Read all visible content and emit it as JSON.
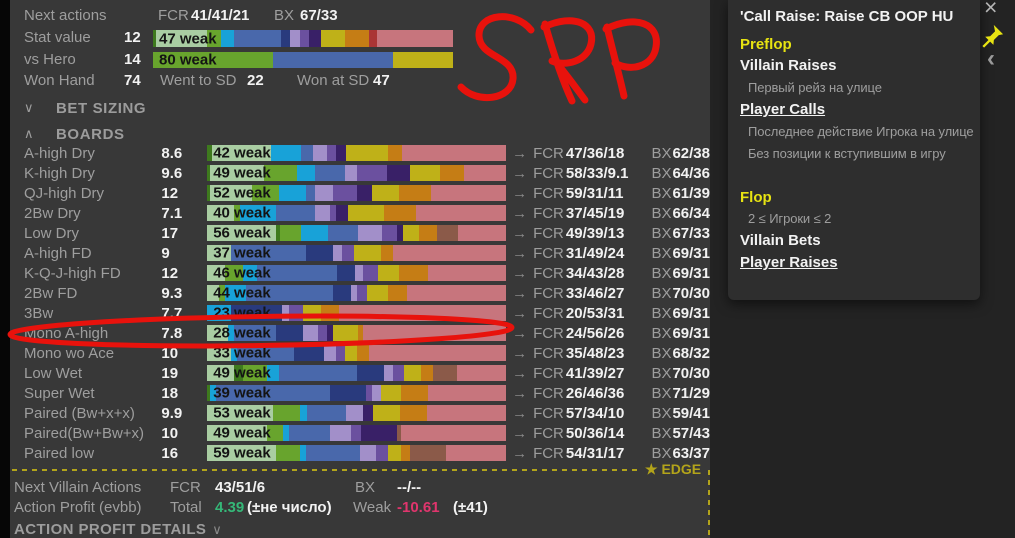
{
  "palette": {
    "dgreen": "#3e7a1e",
    "lgreen": "#a9cda2",
    "green": "#68a42d",
    "cyan": "#18a2d8",
    "blue": "#4968ab",
    "navy": "#293a7d",
    "lpurple": "#a28fc9",
    "purple": "#6b509f",
    "dpurple": "#392067",
    "yellow": "#bfb118",
    "orange": "#c57d15",
    "brown": "#8b5a49",
    "red": "#aa3535",
    "rose": "#c7757d"
  },
  "icons": {
    "arrow": "→",
    "chevron_down": "∨",
    "chevron_up": "∧",
    "close": "×",
    "chevron_left": "‹",
    "star": "★"
  },
  "top_stats": {
    "next_actions_label": "Next actions",
    "fcr_label": "FCR",
    "fcr_value": "41/41/21",
    "bx_label": "BX",
    "bx_value": "67/33",
    "stat_value_label": "Stat value",
    "stat_value": "12",
    "vs_hero_label": "vs Hero",
    "vs_hero_value": "14",
    "won_hand_label": "Won Hand",
    "won_hand_value": "74",
    "went_to_sd_label": "Went to SD",
    "went_to_sd_value": "22",
    "won_at_sd_label": "Won at SD",
    "won_at_sd_value": "47",
    "stat_bar": {
      "weak_label": "47 weak",
      "segments": [
        [
          "dgreen",
          1
        ],
        [
          "lgreen",
          17
        ],
        [
          "green",
          4.5
        ],
        [
          "cyan",
          4.5
        ],
        [
          "blue",
          15.5
        ],
        [
          "navy",
          3
        ],
        [
          "lpurple",
          3.5
        ],
        [
          "purple",
          3
        ],
        [
          "dpurple",
          4
        ],
        [
          "yellow",
          8
        ],
        [
          "orange",
          8
        ],
        [
          "red",
          2.5
        ],
        [
          "rose",
          25.5
        ]
      ]
    },
    "hero_bar": {
      "weak_label": "80 weak",
      "segments": [
        [
          "green",
          40
        ],
        [
          "blue",
          40
        ],
        [
          "yellow",
          20
        ]
      ]
    }
  },
  "sections": {
    "bet_sizing": "BET SIZING",
    "boards": "BOARDS"
  },
  "boards_meta": {
    "arrow": "→",
    "fcr_label": "FCR",
    "bx_label": "BX"
  },
  "boards": [
    {
      "label": "A-high Dry",
      "value": "8.6",
      "weak": "42 weak",
      "fcr": "47/36/18",
      "bx": "62/38",
      "segments": [
        [
          "dgreen",
          1.5
        ],
        [
          "lgreen",
          20
        ],
        [
          "cyan",
          10
        ],
        [
          "blue",
          4
        ],
        [
          "lpurple",
          4.5
        ],
        [
          "purple",
          3
        ],
        [
          "dpurple",
          3.5
        ],
        [
          "yellow",
          14
        ],
        [
          "orange",
          4.5
        ],
        [
          "rose",
          35
        ]
      ]
    },
    {
      "label": "K-high Dry",
      "value": "9.6",
      "weak": "49 weak",
      "fcr": "58/33/9.1",
      "bx": "64/36",
      "segments": [
        [
          "dgreen",
          1
        ],
        [
          "lgreen",
          18
        ],
        [
          "green",
          11
        ],
        [
          "cyan",
          6
        ],
        [
          "blue",
          10
        ],
        [
          "lpurple",
          4
        ],
        [
          "purple",
          10
        ],
        [
          "dpurple",
          8
        ],
        [
          "yellow",
          10
        ],
        [
          "orange",
          8
        ],
        [
          "rose",
          14
        ]
      ]
    },
    {
      "label": "QJ-high Dry",
      "value": "12",
      "weak": "52 weak",
      "fcr": "59/31/11",
      "bx": "61/39",
      "segments": [
        [
          "dgreen",
          1
        ],
        [
          "lgreen",
          14
        ],
        [
          "green",
          9
        ],
        [
          "cyan",
          9
        ],
        [
          "blue",
          3
        ],
        [
          "lpurple",
          6
        ],
        [
          "purple",
          8
        ],
        [
          "dpurple",
          5
        ],
        [
          "yellow",
          9
        ],
        [
          "orange",
          11
        ],
        [
          "rose",
          25
        ]
      ]
    },
    {
      "label": "2Bw Dry",
      "value": "7.1",
      "weak": "40 weak",
      "fcr": "37/45/19",
      "bx": "66/34",
      "segments": [
        [
          "lgreen",
          9
        ],
        [
          "green",
          2
        ],
        [
          "cyan",
          12
        ],
        [
          "blue",
          13
        ],
        [
          "lpurple",
          5
        ],
        [
          "purple",
          2
        ],
        [
          "dpurple",
          4
        ],
        [
          "yellow",
          12
        ],
        [
          "orange",
          11
        ],
        [
          "rose",
          30
        ]
      ]
    },
    {
      "label": "Low Dry",
      "value": "17",
      "weak": "56 weak",
      "fcr": "49/39/13",
      "bx": "67/33",
      "segments": [
        [
          "lgreen",
          23
        ],
        [
          "dgreen",
          1.5
        ],
        [
          "green",
          7
        ],
        [
          "cyan",
          9
        ],
        [
          "blue",
          10
        ],
        [
          "lpurple",
          8
        ],
        [
          "purple",
          5
        ],
        [
          "dpurple",
          2
        ],
        [
          "yellow",
          5.5
        ],
        [
          "orange",
          6
        ],
        [
          "brown",
          7
        ],
        [
          "rose",
          16
        ]
      ]
    },
    {
      "label": "A-high FD",
      "value": "9",
      "weak": "37 weak",
      "fcr": "31/49/24",
      "bx": "69/31",
      "segments": [
        [
          "lgreen",
          8
        ],
        [
          "blue",
          25
        ],
        [
          "navy",
          9
        ],
        [
          "lpurple",
          3
        ],
        [
          "purple",
          4
        ],
        [
          "yellow",
          9
        ],
        [
          "orange",
          4
        ],
        [
          "rose",
          38
        ]
      ]
    },
    {
      "label": "K-Q-J-high FD",
      "value": "12",
      "weak": "46 weak",
      "fcr": "34/43/28",
      "bx": "69/31",
      "segments": [
        [
          "lgreen",
          6
        ],
        [
          "green",
          6
        ],
        [
          "cyan",
          4.5
        ],
        [
          "blue",
          27
        ],
        [
          "navy",
          6
        ],
        [
          "lpurple",
          2.5
        ],
        [
          "purple",
          5
        ],
        [
          "yellow",
          7
        ],
        [
          "orange",
          10
        ],
        [
          "rose",
          26
        ]
      ]
    },
    {
      "label": "2Bw FD",
      "value": "9.3",
      "weak": "44 weak",
      "fcr": "33/46/27",
      "bx": "70/30",
      "segments": [
        [
          "lgreen",
          4
        ],
        [
          "green",
          2
        ],
        [
          "cyan",
          7
        ],
        [
          "blue",
          29
        ],
        [
          "navy",
          6
        ],
        [
          "lpurple",
          2
        ],
        [
          "purple",
          3.5
        ],
        [
          "yellow",
          7
        ],
        [
          "orange",
          6.5
        ],
        [
          "rose",
          33
        ]
      ]
    },
    {
      "label": "3Bw",
      "value": "7.7",
      "weak": "23 weak",
      "fcr": "20/53/31",
      "bx": "69/31",
      "segments": [
        [
          "cyan",
          8
        ],
        [
          "navy",
          17
        ],
        [
          "lpurple",
          2.5
        ],
        [
          "purple",
          4.5
        ],
        [
          "yellow",
          6
        ],
        [
          "orange",
          6
        ],
        [
          "rose",
          56
        ]
      ]
    },
    {
      "label": "Mono A-high",
      "value": "7.8",
      "weak": "28 weak",
      "fcr": "24/56/26",
      "bx": "69/31",
      "segments": [
        [
          "lgreen",
          7
        ],
        [
          "cyan",
          2
        ],
        [
          "blue",
          14
        ],
        [
          "navy",
          9
        ],
        [
          "lpurple",
          5
        ],
        [
          "purple",
          3
        ],
        [
          "dpurple",
          2
        ],
        [
          "yellow",
          8.5
        ],
        [
          "orange",
          1.5
        ],
        [
          "rose",
          48
        ]
      ]
    },
    {
      "label": "Mono wo Ace",
      "value": "10",
      "weak": "33 weak",
      "fcr": "35/48/23",
      "bx": "68/32",
      "segments": [
        [
          "lgreen",
          8
        ],
        [
          "cyan",
          2
        ],
        [
          "blue",
          19
        ],
        [
          "navy",
          10
        ],
        [
          "lpurple",
          4
        ],
        [
          "purple",
          3
        ],
        [
          "yellow",
          4
        ],
        [
          "orange",
          4
        ],
        [
          "rose",
          46
        ]
      ]
    },
    {
      "label": "Low Wet",
      "value": "19",
      "weak": "49 weak",
      "fcr": "41/39/27",
      "bx": "70/30",
      "segments": [
        [
          "lgreen",
          9
        ],
        [
          "dgreen",
          3
        ],
        [
          "green",
          8
        ],
        [
          "cyan",
          4
        ],
        [
          "blue",
          26
        ],
        [
          "navy",
          9
        ],
        [
          "lpurple",
          3
        ],
        [
          "purple",
          4
        ],
        [
          "yellow",
          5.5
        ],
        [
          "orange",
          4
        ],
        [
          "brown",
          8
        ],
        [
          "rose",
          16.5
        ]
      ]
    },
    {
      "label": "Super Wet",
      "value": "18",
      "weak": "39 weak",
      "fcr": "26/46/36",
      "bx": "71/29",
      "segments": [
        [
          "dgreen",
          1
        ],
        [
          "cyan",
          2
        ],
        [
          "blue",
          38
        ],
        [
          "navy",
          12
        ],
        [
          "purple",
          2
        ],
        [
          "lpurple",
          3
        ],
        [
          "yellow",
          7
        ],
        [
          "orange",
          9
        ],
        [
          "rose",
          26
        ]
      ]
    },
    {
      "label": "Paired (Bw+x+x)",
      "value": "9.9",
      "weak": "53 weak",
      "fcr": "57/34/10",
      "bx": "59/41",
      "segments": [
        [
          "lgreen",
          22
        ],
        [
          "green",
          9
        ],
        [
          "cyan",
          2.5
        ],
        [
          "blue",
          13
        ],
        [
          "lpurple",
          5.5
        ],
        [
          "dpurple",
          3.5
        ],
        [
          "yellow",
          9
        ],
        [
          "orange",
          9
        ],
        [
          "rose",
          26.5
        ]
      ]
    },
    {
      "label": "Paired(Bw+Bw+x)",
      "value": "10",
      "weak": "49 weak",
      "fcr": "50/36/14",
      "bx": "57/43",
      "segments": [
        [
          "lgreen",
          20
        ],
        [
          "green",
          5.5
        ],
        [
          "cyan",
          2
        ],
        [
          "blue",
          13.5
        ],
        [
          "lpurple",
          7
        ],
        [
          "purple",
          3.5
        ],
        [
          "dpurple",
          12
        ],
        [
          "brown",
          1.5
        ],
        [
          "rose",
          35
        ]
      ]
    },
    {
      "label": "Paired low",
      "value": "16",
      "weak": "59 weak",
      "fcr": "54/31/17",
      "bx": "63/37",
      "segments": [
        [
          "lgreen",
          23
        ],
        [
          "green",
          8
        ],
        [
          "cyan",
          2
        ],
        [
          "blue",
          18
        ],
        [
          "lpurple",
          5.5
        ],
        [
          "purple",
          4
        ],
        [
          "yellow",
          4.5
        ],
        [
          "orange",
          3
        ],
        [
          "brown",
          12
        ],
        [
          "rose",
          20
        ]
      ]
    }
  ],
  "edge": {
    "label": "EDGE"
  },
  "footer": {
    "next_villain_label": "Next Villain Actions",
    "fcr_label": "FCR",
    "fcr_value": "43/51/6",
    "bx_label": "BX",
    "bx_value": "--/--",
    "action_profit_label": "Action Profit (evbb)",
    "total_label": "Total",
    "total_value": "4.39",
    "total_note": "(±не число)",
    "weak_label": "Weak",
    "weak_value": "-10.61",
    "weak_note": "(±41)",
    "details_label": "ACTION PROFIT DETAILS"
  },
  "panel": {
    "title": "'Call Raise: Raise CB OOP HU",
    "items": [
      {
        "text": "Preflop",
        "style": "header"
      },
      {
        "text": "Villain Raises",
        "style": "action"
      },
      {
        "text": "Первый рейз на улице",
        "style": "desc"
      },
      {
        "text": "Player Calls",
        "style": "action-link"
      },
      {
        "text": "Последнее действие Игрока на улице",
        "style": "desc"
      },
      {
        "text": "Без позиции к вступившим в игру",
        "style": "desc"
      },
      {
        "text": "",
        "style": "spacer"
      },
      {
        "text": "Flop",
        "style": "header"
      },
      {
        "text": "2 ≤ Игроки ≤ 2",
        "style": "desc"
      },
      {
        "text": "Villain Bets",
        "style": "action"
      },
      {
        "text": "Player Raises",
        "style": "action-link"
      }
    ]
  },
  "annotations": {
    "handwritten_text": "SRP",
    "circled_row": "Mono A-high",
    "color": "#e8120c"
  }
}
